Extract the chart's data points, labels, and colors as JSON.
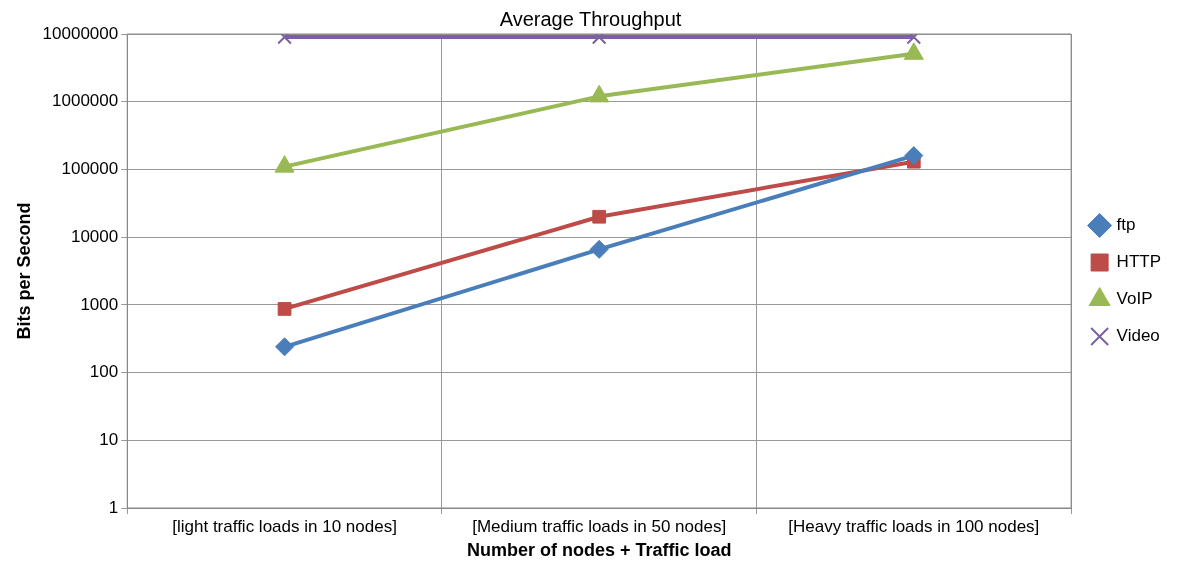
{
  "chart_data": {
    "type": "line",
    "title": "Average Throughput",
    "xlabel": "Number of nodes + Traffic load",
    "ylabel": "Bits per Second",
    "categories": [
      "[light traffic loads in 10 nodes]",
      "[Medium traffic loads in 50 nodes]",
      "[Heavy traffic loads in 100 nodes]"
    ],
    "series": [
      {
        "name": "ftp",
        "color": "#4a7ebb",
        "marker": "diamond",
        "values": [
          240,
          6600,
          160000
        ]
      },
      {
        "name": "HTTP",
        "color": "#be4b48",
        "marker": "square",
        "values": [
          870,
          20000,
          130000
        ]
      },
      {
        "name": "VoIP",
        "color": "#98b954",
        "marker": "triangle",
        "values": [
          110000,
          1200000,
          5100000
        ]
      },
      {
        "name": "Video",
        "color": "#7d60a0",
        "marker": "cross",
        "values": [
          9000000,
          9000000,
          9000000
        ]
      }
    ],
    "log": "y",
    "ylim": [
      1,
      10000000
    ],
    "yticks": [
      1,
      10,
      100,
      1000,
      10000,
      100000,
      1000000,
      10000000
    ],
    "grid": true,
    "legend": "right",
    "line_style": "solid"
  }
}
